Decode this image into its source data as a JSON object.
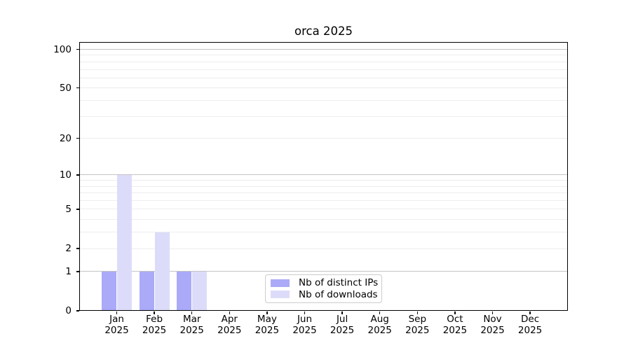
{
  "chart_data": {
    "type": "bar",
    "title": "orca 2025",
    "categories": [
      "Jan",
      "Feb",
      "Mar",
      "Apr",
      "May",
      "Jun",
      "Jul",
      "Aug",
      "Sep",
      "Oct",
      "Nov",
      "Dec"
    ],
    "year_label": "2025",
    "series": [
      {
        "name": "Nb of distinct IPs",
        "color": "#aaaaf8",
        "values": [
          1,
          1,
          1,
          0,
          0,
          0,
          0,
          0,
          0,
          0,
          0,
          0
        ]
      },
      {
        "name": "Nb of downloads",
        "color": "#dcdcfa",
        "values": [
          10,
          3,
          1,
          0,
          0,
          0,
          0,
          0,
          0,
          0,
          0,
          0
        ]
      }
    ],
    "xlabel": "",
    "ylabel": "",
    "yscale": "log1p",
    "ylim": [
      0,
      113
    ],
    "y_ticks": [
      100,
      50,
      20,
      10,
      5,
      2,
      1,
      0
    ],
    "y_major_gridlines": [
      1,
      10,
      100
    ],
    "y_minor_gridlines": [
      2,
      3,
      4,
      5,
      6,
      7,
      8,
      9,
      20,
      30,
      40,
      50,
      60,
      70,
      80,
      90
    ],
    "grid": true,
    "legend": {
      "position": "lower center",
      "entries": [
        "Nb of distinct IPs",
        "Nb of downloads"
      ]
    },
    "colors": {
      "major_grid": "#c4c4c4",
      "minor_grid": "#ededed",
      "spine": "#000000",
      "text": "#000000",
      "background": "#ffffff",
      "legend_border": "#cccccc"
    }
  }
}
